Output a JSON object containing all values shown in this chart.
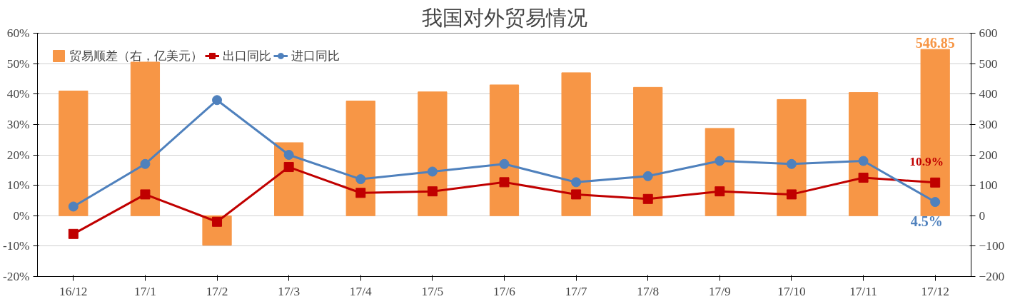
{
  "chart_data": {
    "type": "line",
    "title": "我国对外贸易情况",
    "categories": [
      "16/12",
      "17/1",
      "17/2",
      "17/3",
      "17/4",
      "17/5",
      "17/6",
      "17/7",
      "17/8",
      "17/9",
      "17/10",
      "17/11",
      "17/12"
    ],
    "series": [
      {
        "name": "贸易顺差（右，亿美元）",
        "type": "bar",
        "axis": "y2",
        "color": "#f79646",
        "values": [
          410,
          505,
          -97,
          240,
          377,
          407,
          430,
          470,
          422,
          287,
          382,
          405,
          546.85
        ],
        "value_labels": [
          null,
          null,
          null,
          null,
          null,
          null,
          null,
          null,
          null,
          null,
          null,
          null,
          "546.85"
        ]
      },
      {
        "name": "出口同比",
        "marker": "square",
        "color": "#c00000",
        "values": [
          -6,
          7,
          -2,
          16,
          7.5,
          8,
          11,
          7,
          5.5,
          8,
          7,
          12.5,
          10.9
        ],
        "value_labels": [
          null,
          null,
          null,
          null,
          null,
          null,
          null,
          null,
          null,
          null,
          null,
          null,
          "10.9%"
        ]
      },
      {
        "name": "进口同比",
        "marker": "circle",
        "color": "#4f81bd",
        "values": [
          3,
          17,
          38,
          20,
          12,
          14.5,
          17,
          11,
          13,
          18,
          17,
          18,
          4.5
        ],
        "value_labels": [
          null,
          null,
          null,
          null,
          null,
          null,
          null,
          null,
          null,
          null,
          null,
          null,
          "4.5%"
        ]
      }
    ],
    "ylim": [
      -20,
      60
    ],
    "yticks": [
      {
        "value": -20,
        "label": "-20%"
      },
      {
        "value": -10,
        "label": "-10%"
      },
      {
        "value": 0,
        "label": "0%"
      },
      {
        "value": 10,
        "label": "10%"
      },
      {
        "value": 20,
        "label": "20%"
      },
      {
        "value": 30,
        "label": "30%"
      },
      {
        "value": 40,
        "label": "40%"
      },
      {
        "value": 50,
        "label": "50%"
      },
      {
        "value": 60,
        "label": "60%"
      }
    ],
    "y2lim": [
      -200,
      600
    ],
    "y2ticks": [
      -200,
      -100,
      0,
      100,
      200,
      300,
      400,
      500,
      600
    ],
    "grid": "y",
    "legend": "top left",
    "line_style": "solid"
  }
}
